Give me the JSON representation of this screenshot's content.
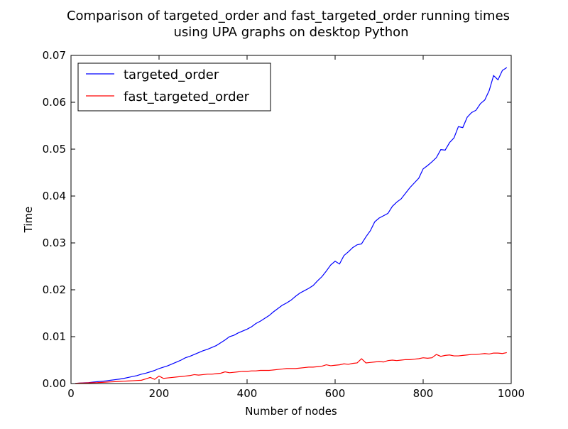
{
  "chart_data": {
    "type": "line",
    "title": "Comparison of targeted_order and fast_targeted_order running times",
    "subtitle": "using UPA graphs on desktop Python",
    "xlabel": "Number of nodes",
    "ylabel": "Time",
    "xlim": [
      0,
      1000
    ],
    "ylim": [
      0,
      0.07
    ],
    "xticks": [
      "0",
      "200",
      "400",
      "600",
      "800",
      "1000"
    ],
    "yticks": [
      "0.00",
      "0.01",
      "0.02",
      "0.03",
      "0.04",
      "0.05",
      "0.06",
      "0.07"
    ],
    "grid": false,
    "legend_position": "top-left",
    "x": [
      10,
      20,
      30,
      40,
      50,
      60,
      70,
      80,
      90,
      100,
      110,
      120,
      130,
      140,
      150,
      160,
      170,
      180,
      190,
      200,
      210,
      220,
      230,
      240,
      250,
      260,
      270,
      280,
      290,
      300,
      310,
      320,
      330,
      340,
      350,
      360,
      370,
      380,
      390,
      400,
      410,
      420,
      430,
      440,
      450,
      460,
      470,
      480,
      490,
      500,
      510,
      520,
      530,
      540,
      550,
      560,
      570,
      580,
      590,
      600,
      610,
      620,
      630,
      640,
      650,
      660,
      670,
      680,
      690,
      700,
      710,
      720,
      730,
      740,
      750,
      760,
      770,
      780,
      790,
      800,
      810,
      820,
      830,
      840,
      850,
      860,
      870,
      880,
      890,
      900,
      910,
      920,
      930,
      940,
      950,
      960,
      970,
      980,
      990
    ],
    "series": [
      {
        "name": "targeted_order",
        "color": "#0000ff",
        "values": [
          5e-05,
          0.0001,
          0.00015,
          0.0002,
          0.0003,
          0.0004,
          0.00048,
          0.00058,
          0.0007,
          0.00082,
          0.00095,
          0.0011,
          0.0013,
          0.0015,
          0.0017,
          0.002,
          0.0022,
          0.0025,
          0.0028,
          0.0032,
          0.0035,
          0.0038,
          0.0042,
          0.0046,
          0.005,
          0.0055,
          0.0058,
          0.0062,
          0.0066,
          0.007,
          0.0073,
          0.0077,
          0.0081,
          0.0087,
          0.0093,
          0.01,
          0.0103,
          0.0108,
          0.0112,
          0.0116,
          0.0121,
          0.0128,
          0.0133,
          0.0139,
          0.0145,
          0.0153,
          0.016,
          0.0167,
          0.0172,
          0.0178,
          0.0186,
          0.0193,
          0.0198,
          0.0203,
          0.0209,
          0.0219,
          0.0228,
          0.024,
          0.0253,
          0.0261,
          0.0255,
          0.0273,
          0.0281,
          0.029,
          0.0296,
          0.0298,
          0.0313,
          0.0326,
          0.0345,
          0.0353,
          0.0358,
          0.0363,
          0.0378,
          0.0387,
          0.0394,
          0.0406,
          0.0418,
          0.0428,
          0.0438,
          0.0458,
          0.0465,
          0.0473,
          0.0482,
          0.0499,
          0.0498,
          0.0514,
          0.0524,
          0.0548,
          0.0546,
          0.0568,
          0.0578,
          0.0583,
          0.0597,
          0.0605,
          0.0625,
          0.0657,
          0.0648,
          0.0668,
          0.0674
        ]
      },
      {
        "name": "fast_targeted_order",
        "color": "#ff0000",
        "values": [
          5e-05,
          0.0001,
          0.00012,
          0.00015,
          0.00018,
          0.0002,
          0.00025,
          0.0003,
          0.00035,
          0.0004,
          0.00045,
          0.0005,
          0.00055,
          0.0006,
          0.00065,
          0.0007,
          0.001,
          0.0013,
          0.0009,
          0.0016,
          0.0011,
          0.0012,
          0.0013,
          0.0014,
          0.0015,
          0.0016,
          0.0017,
          0.0019,
          0.0018,
          0.0019,
          0.002,
          0.002,
          0.0021,
          0.0022,
          0.0025,
          0.0023,
          0.0024,
          0.0025,
          0.0026,
          0.0026,
          0.0027,
          0.0027,
          0.0028,
          0.0028,
          0.0028,
          0.0029,
          0.003,
          0.0031,
          0.0032,
          0.0032,
          0.0032,
          0.0033,
          0.0034,
          0.0035,
          0.0035,
          0.0036,
          0.0037,
          0.004,
          0.0038,
          0.0039,
          0.004,
          0.0042,
          0.0041,
          0.0043,
          0.0044,
          0.0053,
          0.0044,
          0.0045,
          0.0046,
          0.0047,
          0.0046,
          0.0049,
          0.005,
          0.0049,
          0.005,
          0.0051,
          0.0051,
          0.0052,
          0.0053,
          0.0055,
          0.0054,
          0.0055,
          0.0062,
          0.0058,
          0.006,
          0.0061,
          0.0059,
          0.0059,
          0.006,
          0.0061,
          0.0062,
          0.0062,
          0.0063,
          0.0064,
          0.0063,
          0.0065,
          0.0065,
          0.0064,
          0.0066
        ]
      }
    ]
  }
}
